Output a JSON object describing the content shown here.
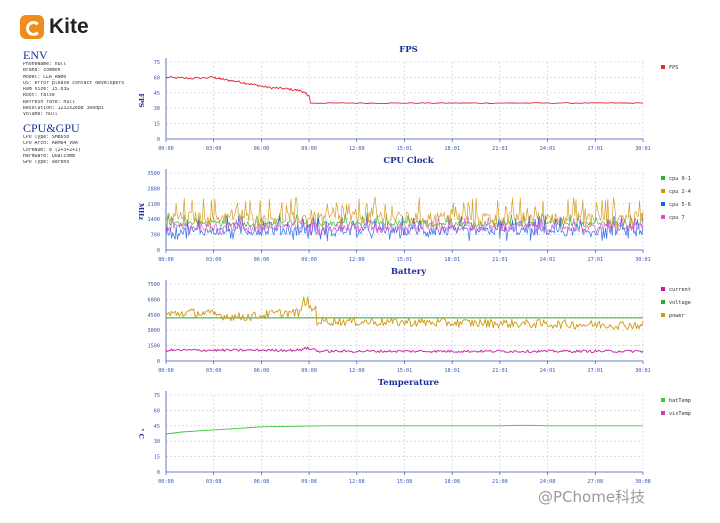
{
  "app": {
    "name": "Kite"
  },
  "env": {
    "title": "ENV",
    "lines": [
      "PhoneName: null",
      "Brand: common",
      "Model: CLA_AN00",
      "OS: error please contact developers",
      "Ram size: 15.03G",
      "Root: false",
      "Refresh rate: null",
      "Resolution: 1232x2688 360dpi",
      "Volume: null"
    ]
  },
  "cpu_gpu": {
    "title": "CPU&GPU",
    "lines": [
      "CPU Type: SM8650",
      "CPU Arch: ARM64_V8A",
      "CoreNum: 8 (2+3+2+1)",
      "Hardware: Qualcomm",
      "GPU Type: adreno"
    ]
  },
  "watermark": "@PChome科技",
  "colors": {
    "fps": "#e0263a",
    "cpu01": "#2bb62b",
    "cpu24": "#d49512",
    "cpu56": "#1e5fe6",
    "cpu7": "#d84ed8",
    "current": "#c41aa0",
    "voltage": "#2ca82c",
    "power": "#d09a12",
    "batTemp": "#3cc43c",
    "visTemp": "#d63ca8",
    "axis": "#3c54b8",
    "grid": "#c8ccd8",
    "title": "#1a2f9a"
  },
  "chart_data": [
    {
      "type": "line",
      "title": "FPS",
      "ylabel": "FPS",
      "xticks": [
        "00:00",
        "03:00",
        "06:00",
        "09:00",
        "12:00",
        "15:01",
        "18:01",
        "21:01",
        "24:01",
        "27:01",
        "30:01"
      ],
      "yticks": [
        "0",
        "15",
        "30",
        "45",
        "60",
        "75"
      ],
      "ylim": [
        0,
        75
      ],
      "xlim": [
        0,
        30
      ],
      "legend": "right",
      "grid": true,
      "series": [
        {
          "name": "FPS",
          "color": "#e0263a",
          "kind": "fps",
          "x": [
            0,
            1.5,
            3.0,
            3.6,
            4.5,
            5.5,
            6.5,
            7.5,
            8.5,
            9.0,
            9.1,
            12,
            15,
            18,
            21,
            24,
            27,
            30
          ],
          "y": [
            60,
            59,
            60,
            58,
            56,
            53,
            50,
            49,
            47,
            42,
            35,
            35,
            35,
            35,
            35,
            35,
            35,
            35
          ]
        }
      ]
    },
    {
      "type": "line",
      "title": "CPU Clock",
      "ylabel": "MHz",
      "xticks": [
        "00:00",
        "03:00",
        "06:00",
        "09:00",
        "12:00",
        "15:01",
        "18:01",
        "21:01",
        "24:01",
        "27:01",
        "30:01"
      ],
      "yticks": [
        "0",
        "700",
        "1400",
        "2100",
        "2800",
        "3500"
      ],
      "ylim": [
        0,
        3500
      ],
      "xlim": [
        0,
        30
      ],
      "legend": "right",
      "grid": true,
      "series": [
        {
          "name": "cpu 0-1",
          "color": "#2bb62b",
          "kind": "cpu01",
          "base": 1200,
          "spread": 450
        },
        {
          "name": "cpu 2-4",
          "color": "#d49512",
          "kind": "cpu24",
          "base": 1400,
          "spread": 1300
        },
        {
          "name": "cpu 5-6",
          "color": "#1e5fe6",
          "kind": "cpu56",
          "base": 800,
          "spread": 900
        },
        {
          "name": "cpu 7",
          "color": "#d84ed8",
          "kind": "cpu7",
          "base": 1000,
          "spread": 900
        }
      ]
    },
    {
      "type": "line",
      "title": "Battery",
      "ylabel": "",
      "xticks": [
        "00:00",
        "03:00",
        "06:00",
        "09:00",
        "12:00",
        "15:01",
        "18:01",
        "21:01",
        "24:01",
        "27:01",
        "30:01"
      ],
      "yticks": [
        "0",
        "1500",
        "3000",
        "4500",
        "6000",
        "7500"
      ],
      "ylim": [
        0,
        7500
      ],
      "xlim": [
        0,
        30
      ],
      "legend": "right",
      "grid": true,
      "series": [
        {
          "name": "current",
          "color": "#c41aa0",
          "kind": "current",
          "base": 1000,
          "spread": 250
        },
        {
          "name": "voltage",
          "color": "#2ca82c",
          "kind": "voltage",
          "value": 4200
        },
        {
          "name": "power",
          "color": "#d09a12",
          "kind": "power",
          "base": 4400,
          "spread": 800
        }
      ]
    },
    {
      "type": "line",
      "title": "Temperature",
      "ylabel": "° C",
      "xticks": [
        "00:00",
        "03:08",
        "06:08",
        "09:08",
        "12:08",
        "15:08",
        "18:08",
        "21:08",
        "24:08",
        "27:08",
        "30:08"
      ],
      "yticks": [
        "0",
        "15",
        "30",
        "45",
        "60",
        "75"
      ],
      "ylim": [
        0,
        75
      ],
      "xlim": [
        0,
        30
      ],
      "legend": "right",
      "grid": true,
      "series": [
        {
          "name": "batTemp",
          "color": "#3cc43c",
          "kind": "temp",
          "x": [
            0,
            1,
            2,
            3,
            4,
            5,
            6,
            8,
            10,
            12,
            15,
            18,
            21,
            22,
            23,
            24,
            27,
            30
          ],
          "y": [
            37,
            39,
            40,
            41,
            42,
            43,
            44,
            44.5,
            45,
            45,
            45,
            45,
            45,
            45.5,
            45.5,
            45,
            45,
            45
          ]
        },
        {
          "name": "visTemp",
          "color": "#d63ca8",
          "kind": "none"
        }
      ]
    }
  ]
}
